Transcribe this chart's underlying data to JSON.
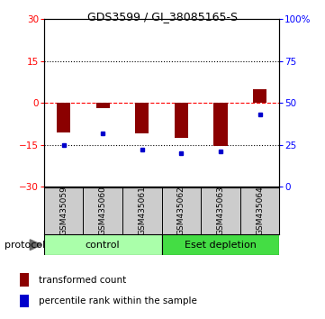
{
  "title": "GDS3599 / GI_38085165-S",
  "samples": [
    "GSM435059",
    "GSM435060",
    "GSM435061",
    "GSM435062",
    "GSM435063",
    "GSM435064"
  ],
  "red_values": [
    -10.5,
    -2.0,
    -11.0,
    -12.5,
    -15.5,
    5.0
  ],
  "blue_values_pct": [
    25,
    32,
    22,
    20,
    21,
    43
  ],
  "groups": [
    {
      "label": "control",
      "indices": [
        0,
        1,
        2
      ],
      "color": "#aaffaa"
    },
    {
      "label": "Eset depletion",
      "indices": [
        3,
        4,
        5
      ],
      "color": "#44dd44"
    }
  ],
  "ylim_left": [
    -30,
    30
  ],
  "ylim_right": [
    0,
    100
  ],
  "yticks_left": [
    -30,
    -15,
    0,
    15,
    30
  ],
  "yticks_right": [
    0,
    25,
    50,
    75,
    100
  ],
  "ytick_labels_right": [
    "0",
    "25",
    "50",
    "75",
    "100%"
  ],
  "hlines": [
    15,
    0,
    -15
  ],
  "hline_styles": [
    "dotted",
    "dashed",
    "dotted"
  ],
  "hline_colors": [
    "black",
    "red",
    "black"
  ],
  "bar_color": "#8b0000",
  "square_color": "#0000cc",
  "bar_width": 0.35,
  "legend_red": "transformed count",
  "legend_blue": "percentile rank within the sample",
  "protocol_label": "protocol",
  "background_color": "#ffffff",
  "plot_bg": "#ffffff",
  "sample_bg": "#cccccc",
  "group_colors": [
    "#aaffaa",
    "#44dd44"
  ]
}
